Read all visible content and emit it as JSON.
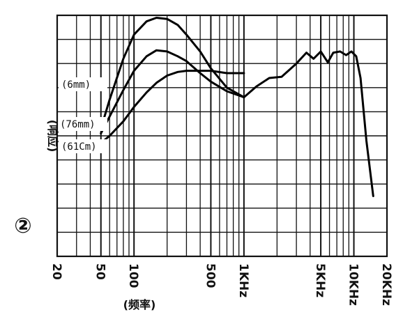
{
  "figure_label": "②",
  "chart_data": {
    "type": "line",
    "title": "",
    "xlabel": "(频率)",
    "ylabel": "(响应)",
    "x_scale": "log",
    "xlim": [
      20,
      20000
    ],
    "x_ticks": [
      {
        "value": 20,
        "label": "20"
      },
      {
        "value": 50,
        "label": "50"
      },
      {
        "value": 100,
        "label": "100"
      },
      {
        "value": 500,
        "label": "500"
      },
      {
        "value": 1000,
        "label": "1KHz"
      },
      {
        "value": 5000,
        "label": "5KHz"
      },
      {
        "value": 10000,
        "label": "10KHz"
      },
      {
        "value": 20000,
        "label": "20KHz"
      }
    ],
    "ylim": [
      0,
      10
    ],
    "grid": true,
    "series": [
      {
        "name": "(6mm)",
        "x": [
          50,
          60,
          80,
          100,
          130,
          160,
          200,
          250,
          300,
          400,
          500,
          700,
          1000
        ],
        "y": [
          5.3,
          6.5,
          8.2,
          9.2,
          9.75,
          9.9,
          9.85,
          9.6,
          9.2,
          8.5,
          7.8,
          7.0,
          6.6
        ]
      },
      {
        "name": "(76mm)",
        "x": [
          50,
          60,
          80,
          100,
          130,
          160,
          200,
          250,
          300,
          400,
          500,
          700,
          1000
        ],
        "y": [
          5.1,
          5.8,
          6.9,
          7.7,
          8.3,
          8.55,
          8.5,
          8.3,
          8.1,
          7.6,
          7.25,
          6.85,
          6.6
        ]
      },
      {
        "name": "(61Cm)",
        "x": [
          50,
          60,
          80,
          100,
          130,
          160,
          200,
          250,
          300,
          400,
          500,
          700,
          1000
        ],
        "y": [
          4.7,
          5.0,
          5.6,
          6.2,
          6.8,
          7.2,
          7.5,
          7.65,
          7.7,
          7.7,
          7.7,
          7.6,
          7.6
        ]
      },
      {
        "name": "",
        "x": [
          1000,
          1300,
          1700,
          2200,
          3000,
          3700,
          4300,
          5000,
          5800,
          6500,
          7500,
          8500,
          9500,
          10500,
          11500,
          13000,
          15000
        ],
        "y": [
          6.6,
          7.05,
          7.4,
          7.45,
          8.0,
          8.45,
          8.2,
          8.5,
          8.05,
          8.45,
          8.5,
          8.35,
          8.5,
          8.3,
          7.4,
          4.8,
          2.5
        ]
      }
    ]
  }
}
